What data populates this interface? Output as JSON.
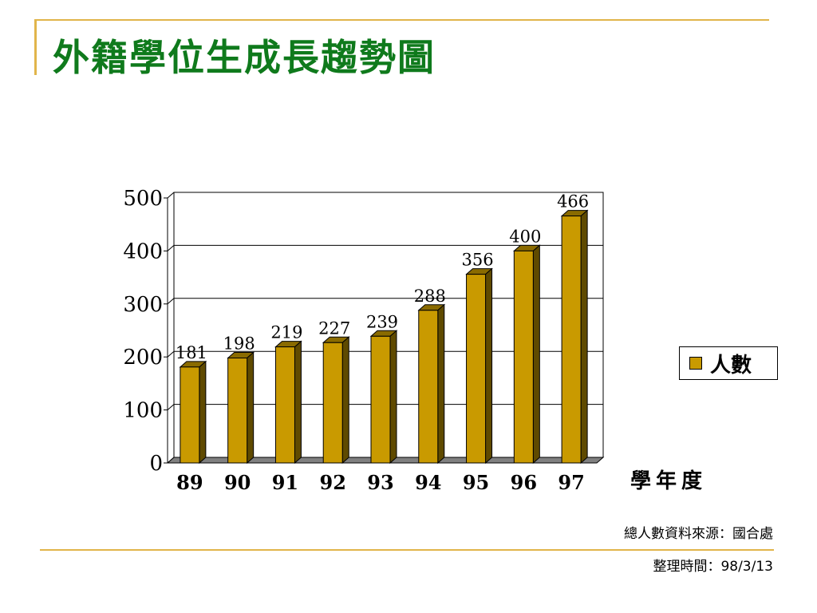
{
  "slide": {
    "title": "外籍學位生成長趨勢圖",
    "x_axis_title": "學年度",
    "source_note": "總人數資料來源：國合處",
    "date_note": "整理時間：98/3/13",
    "accent_color": "#e1b54a",
    "title_color": "#0f7a1c"
  },
  "chart_data": {
    "type": "bar",
    "categories": [
      "89",
      "90",
      "91",
      "92",
      "93",
      "94",
      "95",
      "96",
      "97"
    ],
    "series": [
      {
        "name": "人數",
        "values": [
          181,
          198,
          219,
          227,
          239,
          288,
          356,
          400,
          466
        ],
        "color": "#c99a00"
      }
    ],
    "ylim": [
      0,
      500
    ],
    "yticks": [
      "0",
      "100",
      "200",
      "300",
      "400",
      "500"
    ],
    "grid": true,
    "legend": "right",
    "style": "3d"
  }
}
